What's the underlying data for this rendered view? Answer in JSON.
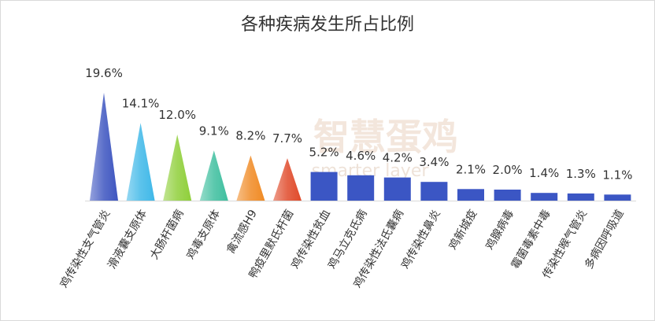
{
  "chart_data": {
    "type": "bar",
    "title": "各种疾病发生所占比例",
    "watermark": [
      "智慧蛋鸡",
      "smarter layer"
    ],
    "categories": [
      "鸡传染性支气管炎",
      "滑液囊支原体",
      "大肠杆菌病",
      "鸡毒支原体",
      "禽流感H9",
      "鸭疫里默氏杆菌",
      "鸡传染性贫血",
      "鸡马立克氏病",
      "鸡传染性法氏囊病",
      "鸡传染性鼻炎",
      "鸡新城疫",
      "鸡腺病毒",
      "霉菌毒素中毒",
      "传染性喉气管炎",
      "多病因呼吸道"
    ],
    "values": [
      19.6,
      14.1,
      12.0,
      9.1,
      8.2,
      7.7,
      5.2,
      4.6,
      4.2,
      3.4,
      2.1,
      2.0,
      1.4,
      1.3,
      1.1
    ],
    "value_labels": [
      "19.6%",
      "14.1%",
      "12.0%",
      "9.1%",
      "8.2%",
      "7.7%",
      "5.2%",
      "4.6%",
      "4.2%",
      "3.4%",
      "2.1%",
      "2.0%",
      "1.4%",
      "1.3%",
      "1.1%"
    ],
    "shapes": [
      "pyramid",
      "pyramid",
      "pyramid",
      "pyramid",
      "pyramid",
      "pyramid",
      "bar",
      "bar",
      "bar",
      "bar",
      "bar",
      "bar",
      "bar",
      "bar",
      "bar"
    ],
    "colors": [
      "#3d55c0",
      "#3fb8e8",
      "#8fcf3a",
      "#3fbf9f",
      "#f08a24",
      "#e04a2a",
      "#3b56c4",
      "#3b56c4",
      "#3b56c4",
      "#3b56c4",
      "#3b56c4",
      "#3b56c4",
      "#3b56c4",
      "#3b56c4",
      "#3b56c4"
    ]
  }
}
